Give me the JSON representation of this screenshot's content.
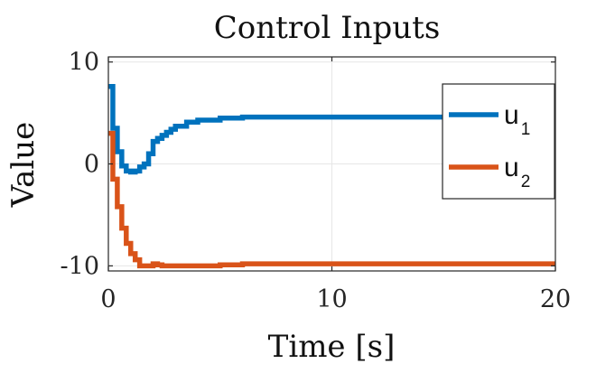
{
  "chart_data": {
    "type": "line",
    "title": "Control Inputs",
    "xlabel": "Time [s]",
    "ylabel": "Value",
    "xlim": [
      0,
      20
    ],
    "ylim": [
      -10.5,
      10.5
    ],
    "grid": true,
    "legend_position": "top-right",
    "x_ticks": [
      "0",
      "10",
      "20"
    ],
    "y_ticks": [
      "10",
      "0",
      "-10"
    ],
    "x_tick_values": [
      0,
      10,
      20
    ],
    "y_tick_values": [
      10,
      0,
      -10
    ],
    "step": true,
    "series": [
      {
        "name_base": "u",
        "name_sub": "1",
        "color": "#0072BD",
        "x": [
          0,
          0.2,
          0.4,
          0.6,
          0.8,
          1.0,
          1.2,
          1.4,
          1.6,
          1.8,
          2.0,
          2.2,
          2.4,
          2.6,
          2.8,
          3.0,
          3.5,
          4.0,
          5.0,
          6.0,
          7.0,
          8.0,
          10.0,
          15.0,
          20.0
        ],
        "y": [
          7.6,
          3.5,
          1.2,
          -0.2,
          -0.7,
          -0.8,
          -0.7,
          -0.3,
          0.0,
          1.0,
          2.2,
          2.5,
          2.8,
          3.1,
          3.4,
          3.7,
          4.1,
          4.3,
          4.5,
          4.6,
          4.6,
          4.6,
          4.6,
          4.6,
          4.6
        ]
      },
      {
        "name_base": "u",
        "name_sub": "2",
        "color": "#D95319",
        "x": [
          0,
          0.2,
          0.4,
          0.6,
          0.8,
          1.0,
          1.2,
          1.4,
          1.6,
          1.8,
          2.0,
          2.2,
          2.4,
          2.6,
          2.8,
          3.0,
          3.5,
          4.0,
          5.0,
          6.0,
          7.0,
          8.0,
          10.0,
          15.0,
          20.0
        ],
        "y": [
          3.0,
          -1.5,
          -4.2,
          -6.3,
          -7.8,
          -8.8,
          -9.4,
          -10.0,
          -10.0,
          -10.0,
          -9.8,
          -9.9,
          -10.0,
          -10.0,
          -10.0,
          -10.0,
          -10.0,
          -10.0,
          -9.9,
          -9.8,
          -9.8,
          -9.8,
          -9.8,
          -9.8,
          -9.8
        ]
      }
    ]
  }
}
